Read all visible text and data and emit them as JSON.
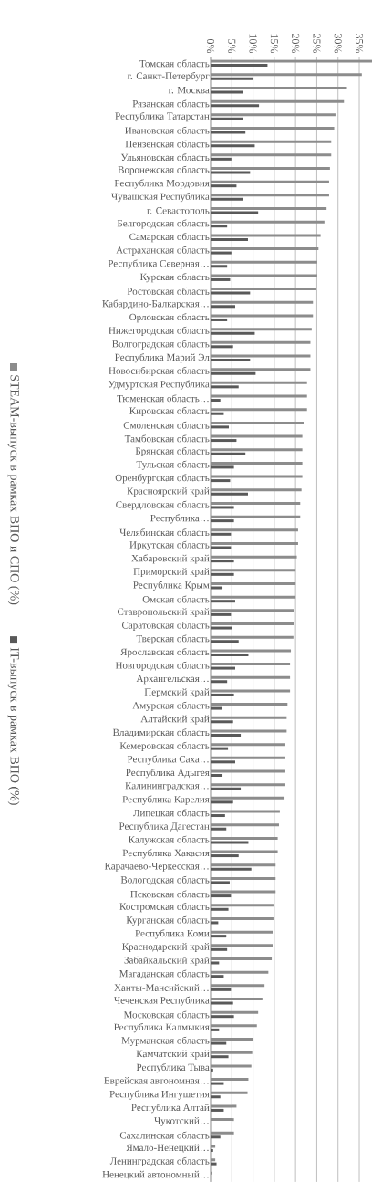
{
  "chart_data": {
    "type": "bar",
    "orientation": "horizontal",
    "categories": [
      "Томская область",
      "г. Санкт-Петербург",
      "г. Москва",
      "Рязанская область",
      "Республика Татарстан",
      "Ивановская область",
      "Пензенская область",
      "Ульяновская область",
      "Воронежская область",
      "Республика Мордовия",
      "Чувашская Республика",
      "г. Севастополь",
      "Белгородская область",
      "Самарская область",
      "Астраханская область",
      "Республика Северная…",
      "Курская область",
      "Ростовская область",
      "Кабардино-Балкарская…",
      "Орловская область",
      "Нижегородская область",
      "Волгоградская область",
      "Республика Марий Эл",
      "Новосибирская область",
      "Удмуртская Республика",
      "Тюменская область…",
      "Кировская область",
      "Смоленская область",
      "Тамбовская область",
      "Брянская область",
      "Тульская область",
      "Оренбургская область",
      "Красноярский край",
      "Свердловская область",
      "Республика…",
      "Челябинская область",
      "Иркутская область",
      "Хабаровский край",
      "Приморский край",
      "Республика Крым",
      "Омская область",
      "Ставропольский край",
      "Саратовская область",
      "Тверская область",
      "Ярославская область",
      "Новгородская область",
      "Архангельская…",
      "Пермский край",
      "Амурская область",
      "Алтайский край",
      "Владимирская область",
      "Кемеровская область",
      "Республика Саха…",
      "Республика Адыгея",
      "Калининградская…",
      "Республика Карелия",
      "Липецкая область",
      "Республика Дагестан",
      "Калужская область",
      "Республика Хакасия",
      "Карачаево-Черкесская…",
      "Вологодская область",
      "Псковская область",
      "Костромская область",
      "Курганская область",
      "Республика Коми",
      "Краснодарский край",
      "Забайкальский край",
      "Магаданская область",
      "Ханты-Мансийский…",
      "Чеченская Республика",
      "Московская область",
      "Республика Калмыкия",
      "Мурманская область",
      "Камчатский край",
      "Республика Тыва",
      "Еврейская автономная…",
      "Республика Ингушетия",
      "Республика Алтай",
      "Чукотский…",
      "Сахалинская область",
      "Ямало-Ненецкий…",
      "Ленинградская область",
      "Ненецкий автономный…"
    ],
    "series": [
      {
        "name": "STEAM-выпуск в рамках ВПО и СПО (%)",
        "color": "#8c8c8c",
        "values": [
          38,
          35.6,
          32.1,
          31.4,
          29.4,
          29.1,
          28.4,
          28.4,
          28.1,
          27.9,
          27.9,
          27.3,
          26.8,
          25.9,
          25.4,
          25.1,
          25.1,
          24.9,
          24.1,
          24.1,
          23.8,
          23.5,
          23.5,
          23.5,
          22.7,
          22.7,
          22.7,
          21.9,
          21.6,
          21.6,
          21.6,
          21.6,
          21.4,
          21.1,
          21.1,
          20.6,
          20.6,
          20.3,
          20,
          20,
          20,
          19.7,
          19.7,
          19.5,
          18.9,
          18.7,
          18.7,
          18.7,
          18.1,
          17.9,
          17.9,
          17.6,
          17.6,
          17.6,
          17.6,
          17.4,
          16.3,
          16.1,
          15.8,
          15.8,
          15.3,
          15.3,
          15.3,
          14.8,
          14.8,
          14.6,
          14.6,
          14.4,
          13.6,
          12.7,
          12.2,
          11.2,
          10.9,
          10.1,
          9.8,
          9.6,
          8.9,
          8.7,
          6.1,
          5.5,
          5.5,
          1.1,
          1.1,
          0.4
        ]
      },
      {
        "name": "IT-выпуск в рамках ВПО (%)",
        "color": "#595959",
        "values": [
          13.4,
          10.1,
          7.6,
          11.4,
          7.6,
          8.2,
          10.4,
          4.9,
          9.3,
          6.1,
          7.6,
          11.2,
          3.9,
          8.8,
          4.9,
          3.9,
          4.6,
          9.3,
          5.8,
          3.9,
          10.4,
          5.3,
          9.3,
          10.6,
          6.6,
          2.3,
          3.1,
          4.3,
          6.1,
          8.2,
          5.5,
          4.6,
          8.8,
          5.5,
          5.5,
          4.8,
          4.8,
          5.5,
          5.5,
          2.8,
          5.8,
          4.8,
          5,
          6.6,
          8.9,
          5.8,
          3.9,
          5.5,
          2.6,
          5.3,
          7.1,
          4.1,
          5.8,
          2.8,
          7.1,
          5.3,
          3.4,
          3.7,
          8.9,
          6.6,
          9.6,
          4.5,
          4.8,
          4.2,
          1.8,
          3.7,
          3.9,
          2,
          3.1,
          4.8,
          5.3,
          5.5,
          2,
          3.7,
          4.2,
          0.6,
          3.1,
          2.3,
          3.1,
          0,
          2.3,
          0.6,
          1.4,
          0
        ]
      }
    ],
    "xlim": [
      0,
      38
    ],
    "xticks": [
      {
        "value": 0,
        "label": "0%"
      },
      {
        "value": 5,
        "label": "5%"
      },
      {
        "value": 10,
        "label": "10%"
      },
      {
        "value": 15,
        "label": "15%"
      },
      {
        "value": 20,
        "label": "20%"
      },
      {
        "value": 25,
        "label": "25%"
      },
      {
        "value": 30,
        "label": "30%"
      },
      {
        "value": 35,
        "label": "35%"
      }
    ],
    "grid": "x",
    "legend": "left"
  }
}
